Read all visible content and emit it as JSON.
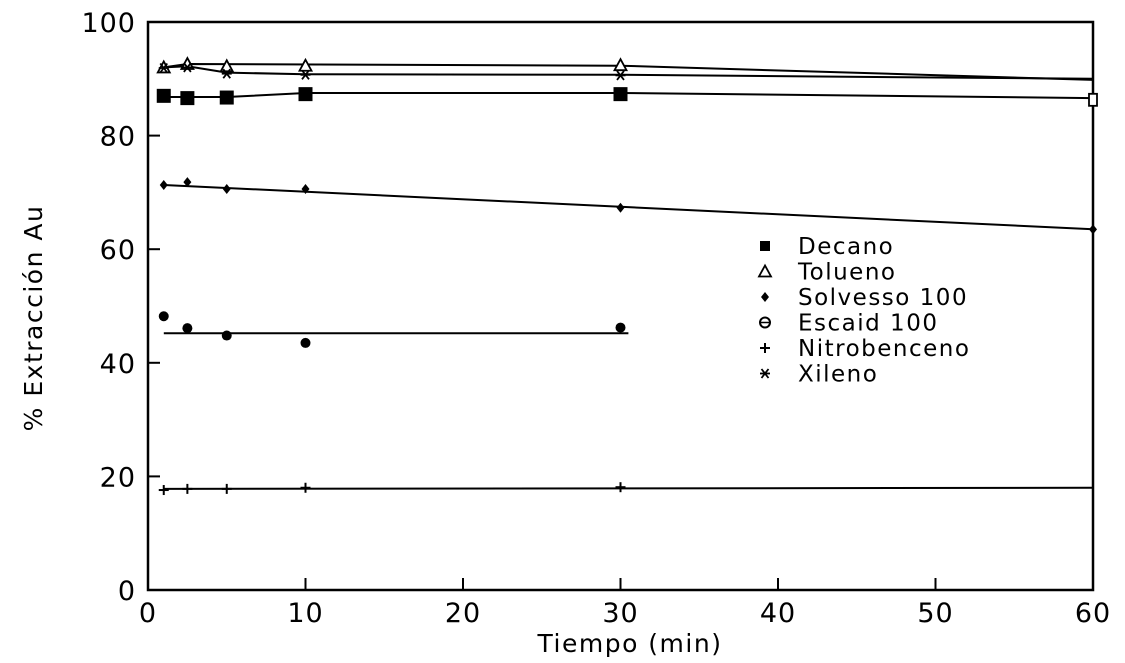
{
  "chart_data": {
    "type": "line",
    "title": "",
    "xlabel": "Tiempo (min)",
    "ylabel": "% Extracción Au",
    "xlim": [
      0,
      60
    ],
    "ylim": [
      0,
      100
    ],
    "x_ticks": [
      "0",
      "10",
      "20",
      "30",
      "40",
      "50",
      "60"
    ],
    "y_ticks": [
      "0",
      "20",
      "40",
      "60",
      "80",
      "100"
    ],
    "grid": false,
    "legend_position": "center-right",
    "series": [
      {
        "name": "Decano",
        "marker": "square",
        "points": [
          [
            1,
            87.0
          ],
          [
            2.5,
            86.6
          ],
          [
            5,
            86.7
          ],
          [
            10,
            87.3
          ],
          [
            30,
            87.3
          ],
          [
            60,
            86.3
          ]
        ],
        "fit": [
          [
            1,
            86.8
          ],
          [
            5,
            86.8
          ],
          [
            10,
            87.5
          ],
          [
            30,
            87.5
          ],
          [
            60,
            86.6
          ]
        ]
      },
      {
        "name": "Tolueno",
        "marker": "triangle",
        "points": [
          [
            1,
            92.0
          ],
          [
            2.5,
            92.6
          ],
          [
            5,
            92.2
          ],
          [
            10,
            92.3
          ],
          [
            30,
            92.4
          ]
        ],
        "fit": [
          [
            1,
            92.0
          ],
          [
            2.5,
            92.6
          ],
          [
            30,
            92.3
          ],
          [
            60,
            89.8
          ]
        ]
      },
      {
        "name": "Solvesso 100",
        "marker": "diamond",
        "points": [
          [
            1,
            71.3
          ],
          [
            2.5,
            71.8
          ],
          [
            5,
            70.6
          ],
          [
            10,
            70.6
          ],
          [
            30,
            67.3
          ],
          [
            60,
            63.5
          ]
        ],
        "fit": [
          [
            1,
            71.3
          ],
          [
            60,
            63.5
          ]
        ]
      },
      {
        "name": "Escaid 100",
        "marker": "circle",
        "points": [
          [
            1,
            48.2
          ],
          [
            2.5,
            46.1
          ],
          [
            5,
            44.8
          ],
          [
            10,
            43.5
          ],
          [
            30,
            46.2
          ]
        ],
        "fit": [
          [
            1,
            45.2
          ],
          [
            30.5,
            45.2
          ]
        ]
      },
      {
        "name": "Nitrobenceno",
        "marker": "plus",
        "points": [
          [
            1,
            17.6
          ],
          [
            2.5,
            17.8
          ],
          [
            5,
            17.8
          ],
          [
            10,
            18.0
          ],
          [
            30,
            18.1
          ]
        ],
        "fit": [
          [
            1,
            17.8
          ],
          [
            60,
            18.0
          ]
        ]
      },
      {
        "name": "Xileno",
        "marker": "star",
        "points": [
          [
            1,
            91.9
          ],
          [
            2.5,
            92.0
          ],
          [
            5,
            90.9
          ],
          [
            10,
            90.7
          ],
          [
            30,
            90.6
          ]
        ],
        "fit": [
          [
            1,
            92.0
          ],
          [
            2.5,
            92.2
          ],
          [
            5,
            91.1
          ],
          [
            10,
            90.8
          ],
          [
            30,
            90.7
          ],
          [
            60,
            90.0
          ]
        ]
      }
    ]
  }
}
